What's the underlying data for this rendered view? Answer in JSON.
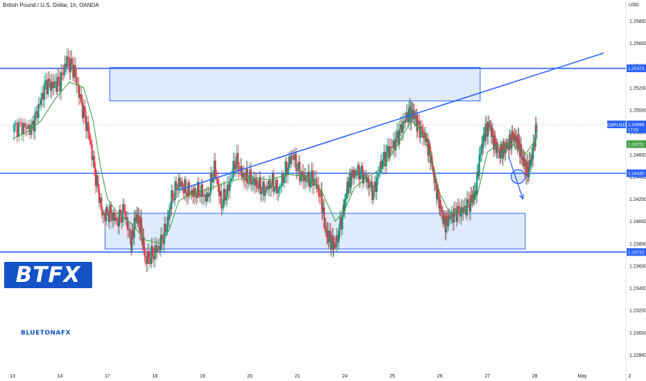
{
  "header": {
    "title": "British Pound / U.S. Dollar, 1h, OANDA",
    "currency": "USD"
  },
  "logo": {
    "text": "BTFX"
  },
  "brand": {
    "text": "BLUETONAFX"
  },
  "colors": {
    "up": "#089981",
    "down": "#f23645",
    "accent": "#2962ff",
    "zone": "#dbe8fb",
    "ma": "#43a047"
  },
  "chart_data": {
    "type": "candlestick",
    "symbol_label": "GBPUSD",
    "ylim": [
      1.227,
      1.259
    ],
    "y_ticks": [
      "1.25800",
      "1.25600",
      "1.25400",
      "1.25200",
      "1.25000",
      "1.24800",
      "1.24600",
      "1.24400",
      "1.24200",
      "1.24000",
      "1.23800",
      "1.23600",
      "1.23400",
      "1.23200",
      "1.23000",
      "1.22800"
    ],
    "x_ticks": [
      {
        "label": "13",
        "day": 0
      },
      {
        "label": "14",
        "day": 1
      },
      {
        "label": "17",
        "day": 2
      },
      {
        "label": "18",
        "day": 3
      },
      {
        "label": "19",
        "day": 4
      },
      {
        "label": "20",
        "day": 5
      },
      {
        "label": "21",
        "day": 6
      },
      {
        "label": "24",
        "day": 7
      },
      {
        "label": "25",
        "day": 8
      },
      {
        "label": "26",
        "day": 9
      },
      {
        "label": "27",
        "day": 10
      },
      {
        "label": "28",
        "day": 11
      },
      {
        "label": "May",
        "day": 12
      },
      {
        "label": "2",
        "day": 13
      }
    ],
    "price_labels": [
      {
        "value": 1.25373,
        "text": "1.25373",
        "kind": "level"
      },
      {
        "value": 1.24866,
        "text": "1.24866",
        "kind": "last",
        "sub": "17:03"
      },
      {
        "value": 1.24751,
        "text": "1.24751",
        "kind": "ma"
      },
      {
        "value": 1.2443,
        "text": "1.24430",
        "kind": "level"
      },
      {
        "value": 1.23722,
        "text": "1.23722",
        "kind": "level"
      }
    ],
    "horizontal_lines": [
      1.25373,
      1.2443,
      1.23722
    ],
    "last_price_line": 1.24866,
    "zones": [
      {
        "x0": 2.05,
        "x1": 9.85,
        "y0": 1.2508,
        "y1": 1.2538
      },
      {
        "x0": 1.95,
        "x1": 10.8,
        "y0": 1.2375,
        "y1": 1.2407
      }
    ],
    "trendline": {
      "x0": 3.5,
      "y0": 1.2428,
      "x1": 12.45,
      "y1": 1.2551
    },
    "arrow": {
      "x0": 10.45,
      "y0": 1.2458,
      "x1": 10.75,
      "y1": 1.242
    },
    "circle": {
      "x": 10.65,
      "y": 1.244
    },
    "closes": [
      [
        0.0,
        1.2484
      ],
      [
        0.2,
        1.2485
      ],
      [
        0.4,
        1.2483
      ],
      [
        0.55,
        1.2502
      ],
      [
        0.7,
        1.2523
      ],
      [
        0.85,
        1.2522
      ],
      [
        1.0,
        1.2525
      ],
      [
        1.15,
        1.2545
      ],
      [
        1.3,
        1.2535
      ],
      [
        1.45,
        1.2505
      ],
      [
        1.6,
        1.248
      ],
      [
        1.75,
        1.244
      ],
      [
        1.9,
        1.2405
      ],
      [
        2.05,
        1.2408
      ],
      [
        2.2,
        1.24
      ],
      [
        2.35,
        1.241
      ],
      [
        2.5,
        1.238
      ],
      [
        2.6,
        1.2405
      ],
      [
        2.7,
        1.2395
      ],
      [
        2.8,
        1.2365
      ],
      [
        2.95,
        1.237
      ],
      [
        3.1,
        1.2378
      ],
      [
        3.25,
        1.2395
      ],
      [
        3.35,
        1.242
      ],
      [
        3.5,
        1.2435
      ],
      [
        3.65,
        1.2428
      ],
      [
        3.8,
        1.2425
      ],
      [
        3.95,
        1.2427
      ],
      [
        4.1,
        1.242
      ],
      [
        4.25,
        1.2448
      ],
      [
        4.4,
        1.2415
      ],
      [
        4.55,
        1.243
      ],
      [
        4.7,
        1.2455
      ],
      [
        4.85,
        1.244
      ],
      [
        5.0,
        1.2438
      ],
      [
        5.15,
        1.2433
      ],
      [
        5.3,
        1.2427
      ],
      [
        5.45,
        1.2435
      ],
      [
        5.6,
        1.2428
      ],
      [
        5.75,
        1.2445
      ],
      [
        5.9,
        1.246
      ],
      [
        6.05,
        1.2442
      ],
      [
        6.2,
        1.2437
      ],
      [
        6.35,
        1.2438
      ],
      [
        6.5,
        1.242
      ],
      [
        6.6,
        1.239
      ],
      [
        6.7,
        1.2382
      ],
      [
        6.8,
        1.2378
      ],
      [
        6.95,
        1.2405
      ],
      [
        7.05,
        1.243
      ],
      [
        7.15,
        1.2442
      ],
      [
        7.3,
        1.2445
      ],
      [
        7.45,
        1.2438
      ],
      [
        7.6,
        1.2425
      ],
      [
        7.75,
        1.245
      ],
      [
        7.9,
        1.2462
      ],
      [
        8.05,
        1.247
      ],
      [
        8.2,
        1.2485
      ],
      [
        8.35,
        1.2498
      ],
      [
        8.45,
        1.2496
      ],
      [
        8.55,
        1.2485
      ],
      [
        8.7,
        1.2475
      ],
      [
        8.8,
        1.246
      ],
      [
        8.9,
        1.2435
      ],
      [
        9.0,
        1.2415
      ],
      [
        9.1,
        1.2398
      ],
      [
        9.2,
        1.2403
      ],
      [
        9.35,
        1.2408
      ],
      [
        9.5,
        1.241
      ],
      [
        9.65,
        1.2418
      ],
      [
        9.75,
        1.2425
      ],
      [
        9.85,
        1.246
      ],
      [
        9.95,
        1.248
      ],
      [
        10.05,
        1.2486
      ],
      [
        10.15,
        1.247
      ],
      [
        10.25,
        1.2462
      ],
      [
        10.35,
        1.2465
      ],
      [
        10.45,
        1.247
      ],
      [
        10.55,
        1.2476
      ],
      [
        10.65,
        1.247
      ],
      [
        10.75,
        1.2455
      ],
      [
        10.85,
        1.2443
      ],
      [
        10.95,
        1.246
      ],
      [
        11.05,
        1.2487
      ]
    ],
    "ma_points": [
      [
        0.0,
        1.2474
      ],
      [
        0.3,
        1.248
      ],
      [
        0.6,
        1.249
      ],
      [
        0.9,
        1.251
      ],
      [
        1.2,
        1.2525
      ],
      [
        1.5,
        1.252
      ],
      [
        1.7,
        1.249
      ],
      [
        1.85,
        1.245
      ],
      [
        2.0,
        1.242
      ],
      [
        2.2,
        1.2408
      ],
      [
        2.5,
        1.2398
      ],
      [
        2.8,
        1.2383
      ],
      [
        3.1,
        1.238
      ],
      [
        3.3,
        1.2392
      ],
      [
        3.5,
        1.2418
      ],
      [
        3.8,
        1.2425
      ],
      [
        4.2,
        1.243
      ],
      [
        4.6,
        1.2436
      ],
      [
        5.0,
        1.244
      ],
      [
        5.4,
        1.2437
      ],
      [
        5.8,
        1.2442
      ],
      [
        6.2,
        1.244
      ],
      [
        6.5,
        1.2428
      ],
      [
        6.8,
        1.24
      ],
      [
        7.0,
        1.241
      ],
      [
        7.2,
        1.243
      ],
      [
        7.5,
        1.244
      ],
      [
        7.8,
        1.2448
      ],
      [
        8.1,
        1.2468
      ],
      [
        8.4,
        1.249
      ],
      [
        8.6,
        1.2482
      ],
      [
        8.8,
        1.246
      ],
      [
        9.0,
        1.2425
      ],
      [
        9.2,
        1.2408
      ],
      [
        9.5,
        1.2408
      ],
      [
        9.8,
        1.2425
      ],
      [
        10.0,
        1.2462
      ],
      [
        10.2,
        1.2468
      ],
      [
        10.5,
        1.247
      ],
      [
        10.8,
        1.246
      ],
      [
        11.05,
        1.2475
      ]
    ]
  }
}
